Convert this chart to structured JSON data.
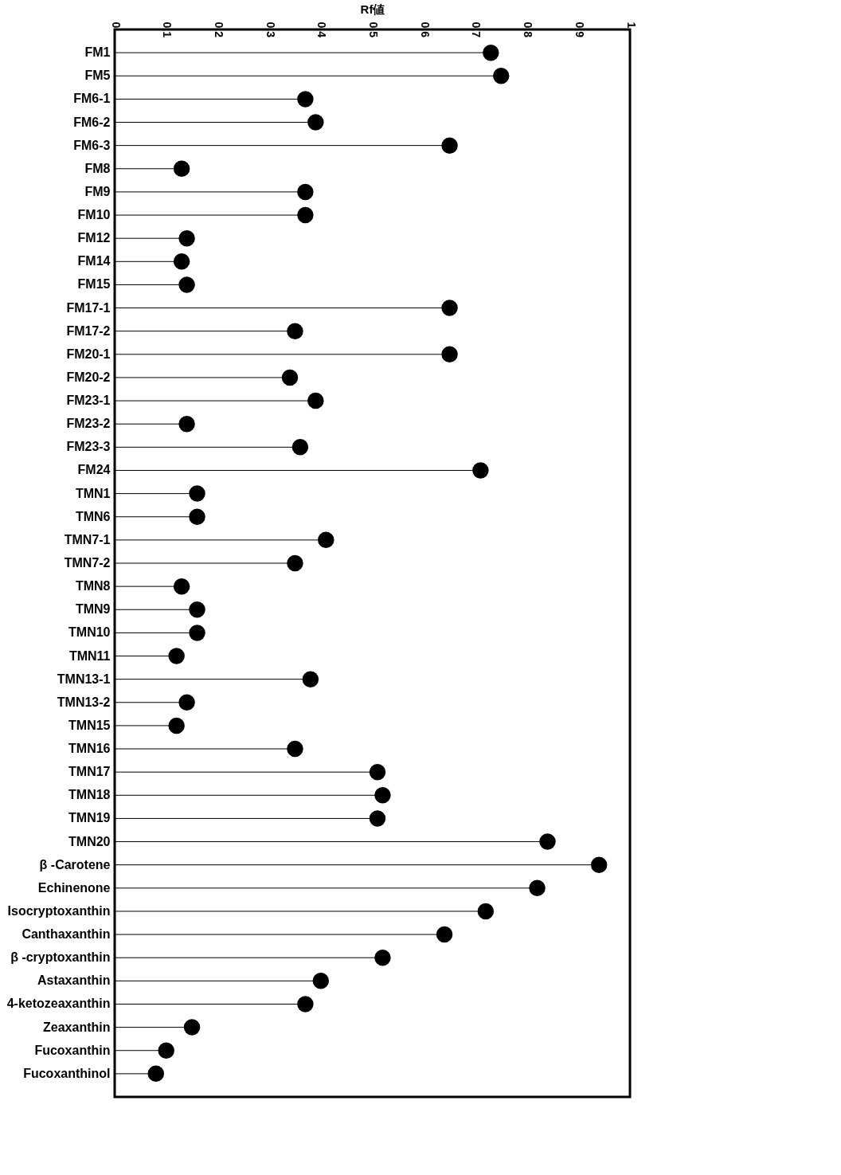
{
  "chart_data": {
    "type": "lollipop",
    "orientation": "horizontal",
    "xlabel": "Rf値",
    "categories": [
      "FM1",
      "FM5",
      "FM6-1",
      "FM6-2",
      "FM6-3",
      "FM8",
      "FM9",
      "FM10",
      "FM12",
      "FM14",
      "FM15",
      "FM17-1",
      "FM17-2",
      "FM20-1",
      "FM20-2",
      "FM23-1",
      "FM23-2",
      "FM23-3",
      "FM24",
      "TMN1",
      "TMN6",
      "TMN7-1",
      "TMN7-2",
      "TMN8",
      "TMN9",
      "TMN10",
      "TMN11",
      "TMN13-1",
      "TMN13-2",
      "TMN15",
      "TMN16",
      "TMN17",
      "TMN18",
      "TMN19",
      "TMN20",
      "β -Carotene",
      "Echinenone",
      "Isocryptoxanthin",
      "Canthaxanthin",
      "β -cryptoxanthin",
      "Astaxanthin",
      "4-ketozeaxanthin",
      "Zeaxanthin",
      "Fucoxanthin",
      "Fucoxanthinol"
    ],
    "values": [
      0.73,
      0.75,
      0.37,
      0.39,
      0.65,
      0.13,
      0.37,
      0.37,
      0.14,
      0.13,
      0.14,
      0.65,
      0.35,
      0.65,
      0.34,
      0.39,
      0.14,
      0.36,
      0.71,
      0.16,
      0.16,
      0.41,
      0.35,
      0.13,
      0.16,
      0.16,
      0.12,
      0.38,
      0.14,
      0.12,
      0.35,
      0.51,
      0.52,
      0.51,
      0.84,
      0.94,
      0.82,
      0.72,
      0.64,
      0.52,
      0.4,
      0.37,
      0.15,
      0.1,
      0.08
    ],
    "color": "#000000",
    "marker": "circle",
    "xlim": [
      0,
      1
    ],
    "xticks": [
      0,
      0.1,
      0.2,
      0.3,
      0.4,
      0.5,
      0.6,
      0.7,
      0.8,
      0.9,
      1
    ],
    "grid": false
  }
}
